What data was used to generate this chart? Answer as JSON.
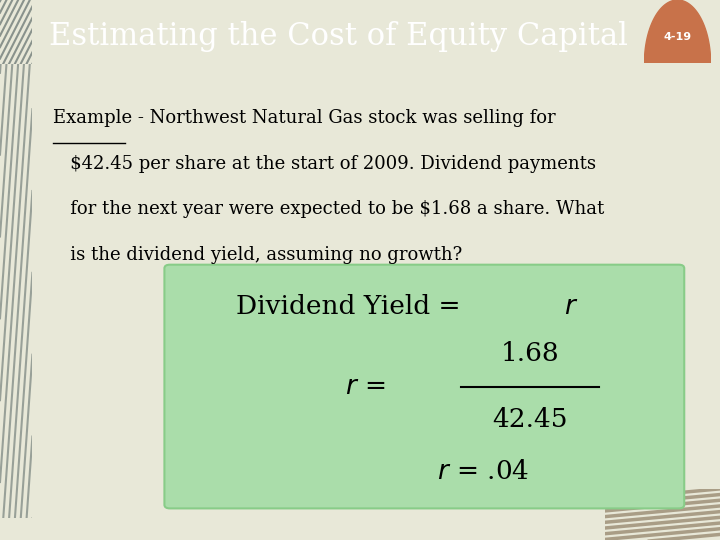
{
  "title": "Estimating the Cost of Equity Capital",
  "slide_number": "4-19",
  "header_bg_color": "#3d5a5a",
  "header_text_color": "#ffffff",
  "body_bg_color": "#e8e8d8",
  "left_stripe_color": "#5a6a6a",
  "green_box_color": "#aaddaa",
  "example_line1": "Example - Northwest Natural Gas stock was selling for",
  "example_line2": "   $42.45 per share at the start of 2009. Dividend payments",
  "example_line3": "   for the next year were expected to be $1.68 a share. What",
  "example_line4": "   is the dividend yield, assuming no growth?",
  "body_text_color": "#000000",
  "slide_num_color": "#ffffff",
  "slide_num_bg": "#c8724a",
  "bottom_bar_color": "#3d5050",
  "thumb_color": "#8B7355",
  "thumb_line_color": "#6B5335"
}
